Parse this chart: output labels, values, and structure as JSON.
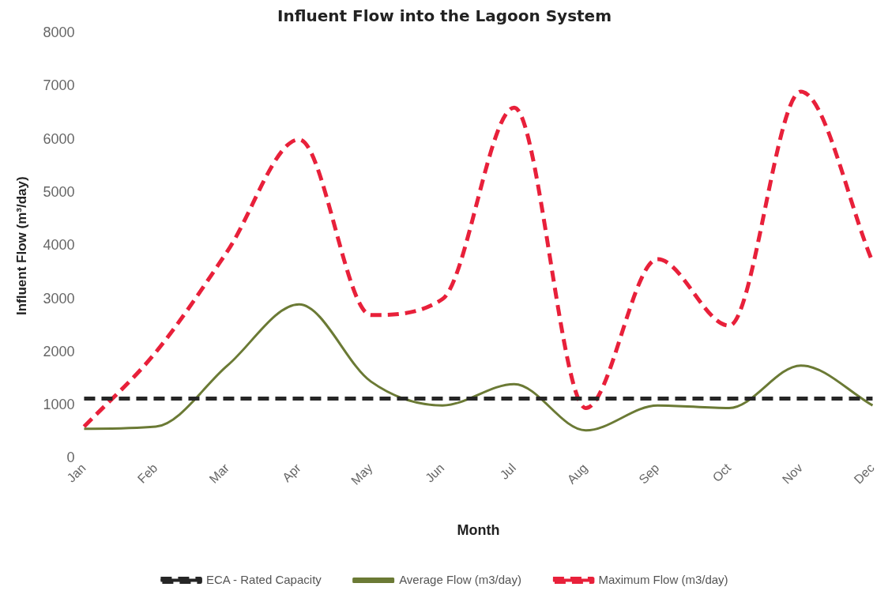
{
  "chart_data": {
    "type": "line",
    "title": "Influent Flow into the Lagoon System",
    "xlabel": "Month",
    "ylabel": "Influent Flow (m³/day)",
    "categories": [
      "Jan",
      "Feb",
      "Mar",
      "Apr",
      "May",
      "Jun",
      "Jul",
      "Aug",
      "Sep",
      "Oct",
      "Nov",
      "Dec"
    ],
    "series": [
      {
        "name": "ECA - Rated Capacity",
        "color": "#262626",
        "line_style": "dashed",
        "values": [
          1130,
          1130,
          1130,
          1130,
          1130,
          1130,
          1130,
          1130,
          1130,
          1130,
          1130,
          1130
        ]
      },
      {
        "name": "Average Flow (m3/day)",
        "color": "#6b7a35",
        "line_style": "solid",
        "values": [
          560,
          600,
          1750,
          2900,
          1450,
          1000,
          1400,
          530,
          1000,
          950,
          1750,
          1000
        ]
      },
      {
        "name": "Maximum Flow (m3/day)",
        "color": "#e8203a",
        "line_style": "dashed",
        "values": [
          600,
          2000,
          3900,
          6000,
          2700,
          3000,
          6600,
          950,
          3750,
          2500,
          6900,
          3700
        ]
      }
    ],
    "ylim": [
      0,
      8000
    ],
    "yticks": [
      0,
      1000,
      2000,
      3000,
      4000,
      5000,
      6000,
      7000,
      8000
    ],
    "grid": false,
    "legend": "bottom",
    "marker": "none"
  }
}
